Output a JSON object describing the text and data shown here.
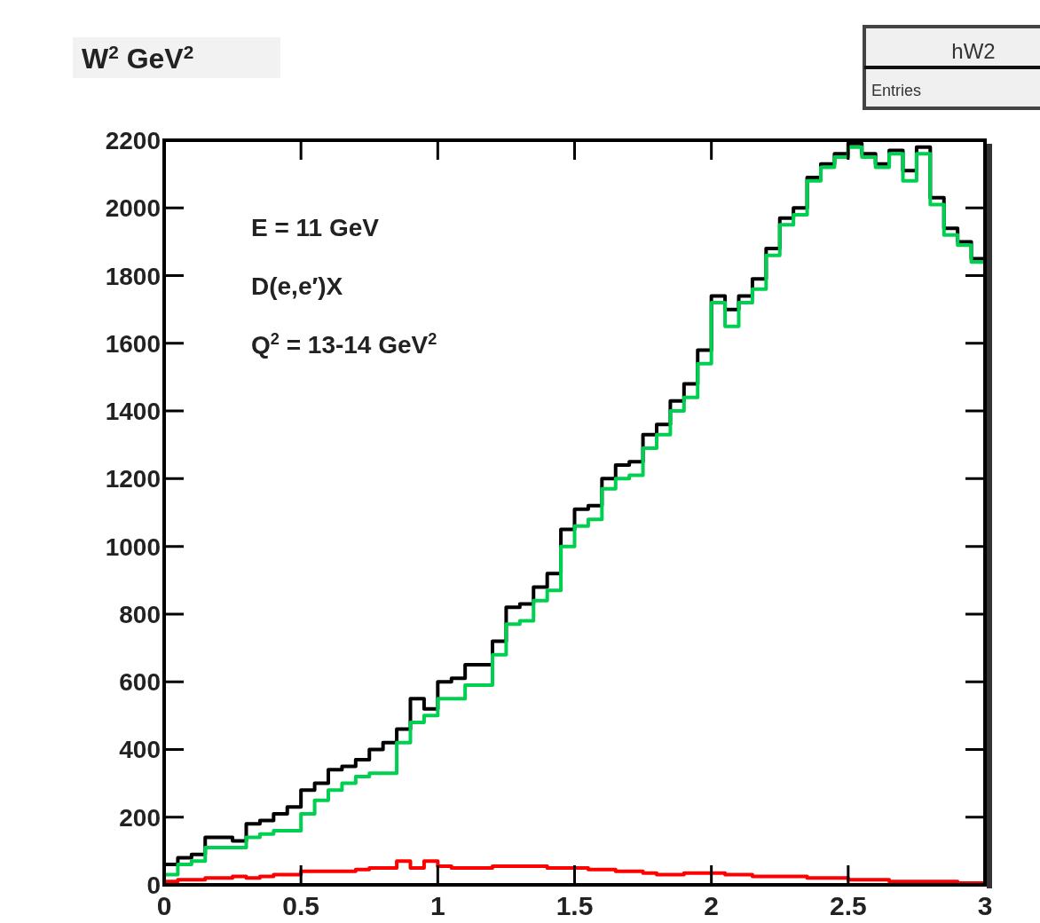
{
  "chart_data": {
    "type": "step",
    "title": "W$^{2}$ GeV$^{2}$",
    "annotations": [
      "E = 11 GeV",
      "D(e,e′)X",
      "Q$^{2}$ = 13-14 GeV$^{2}$",
      "hW2",
      "Entries"
    ],
    "x": [
      0,
      0.05,
      0.1,
      0.15,
      0.2,
      0.25,
      0.3,
      0.35,
      0.4,
      0.45,
      0.5,
      0.55,
      0.6,
      0.65,
      0.7,
      0.75,
      0.8,
      0.85,
      0.9,
      0.95,
      1,
      1.05,
      1.1,
      1.15,
      1.2,
      1.25,
      1.3,
      1.35,
      1.4,
      1.45,
      1.5,
      1.55,
      1.6,
      1.65,
      1.7,
      1.75,
      1.8,
      1.85,
      1.9,
      1.95,
      2,
      2.05,
      2.1,
      2.15,
      2.2,
      2.25,
      2.3,
      2.35,
      2.4,
      2.45,
      2.5,
      2.55,
      2.6,
      2.65,
      2.7,
      2.75,
      2.8,
      2.85,
      2.9,
      2.95,
      3
    ],
    "series": [
      {
        "color": "#000000",
        "values": [
          60,
          80,
          90,
          140,
          140,
          130,
          180,
          190,
          210,
          230,
          280,
          300,
          340,
          350,
          370,
          400,
          420,
          460,
          550,
          520,
          600,
          610,
          650,
          650,
          720,
          820,
          830,
          880,
          920,
          1050,
          1110,
          1120,
          1200,
          1240,
          1250,
          1330,
          1360,
          1430,
          1480,
          1580,
          1740,
          1700,
          1740,
          1790,
          1880,
          1970,
          2000,
          2090,
          2130,
          2160,
          2190,
          2160,
          2130,
          2170,
          2110,
          2180,
          2030,
          1940,
          1900,
          1850,
          1850
        ]
      },
      {
        "color": "#00d050",
        "values": [
          30,
          60,
          70,
          110,
          110,
          110,
          140,
          150,
          160,
          160,
          210,
          250,
          280,
          300,
          320,
          330,
          330,
          420,
          480,
          500,
          550,
          550,
          590,
          590,
          680,
          770,
          780,
          840,
          870,
          1000,
          1060,
          1080,
          1170,
          1200,
          1210,
          1290,
          1330,
          1400,
          1440,
          1540,
          1720,
          1650,
          1720,
          1760,
          1860,
          1950,
          1980,
          2080,
          2120,
          2150,
          2180,
          2150,
          2120,
          2160,
          2080,
          2160,
          2010,
          1920,
          1890,
          1840,
          1840
        ]
      },
      {
        "color": "#ff0000",
        "values": [
          10,
          15,
          15,
          20,
          20,
          25,
          20,
          25,
          30,
          30,
          40,
          40,
          40,
          40,
          45,
          50,
          50,
          70,
          50,
          70,
          55,
          50,
          50,
          50,
          55,
          55,
          55,
          55,
          50,
          50,
          50,
          45,
          45,
          40,
          40,
          35,
          30,
          30,
          35,
          35,
          35,
          30,
          30,
          25,
          25,
          25,
          25,
          20,
          20,
          20,
          15,
          15,
          15,
          10,
          10,
          10,
          10,
          10,
          5,
          5,
          5
        ]
      }
    ],
    "xlim": [
      0,
      3
    ],
    "xticks": [
      0,
      0.5,
      1,
      1.5,
      2,
      2.5,
      3
    ],
    "ylim": [
      0,
      2200
    ],
    "yticks": [
      0,
      200,
      400,
      600,
      800,
      1000,
      1200,
      1400,
      1600,
      1800,
      2000,
      2200
    ],
    "grid": false,
    "marker": "none"
  }
}
